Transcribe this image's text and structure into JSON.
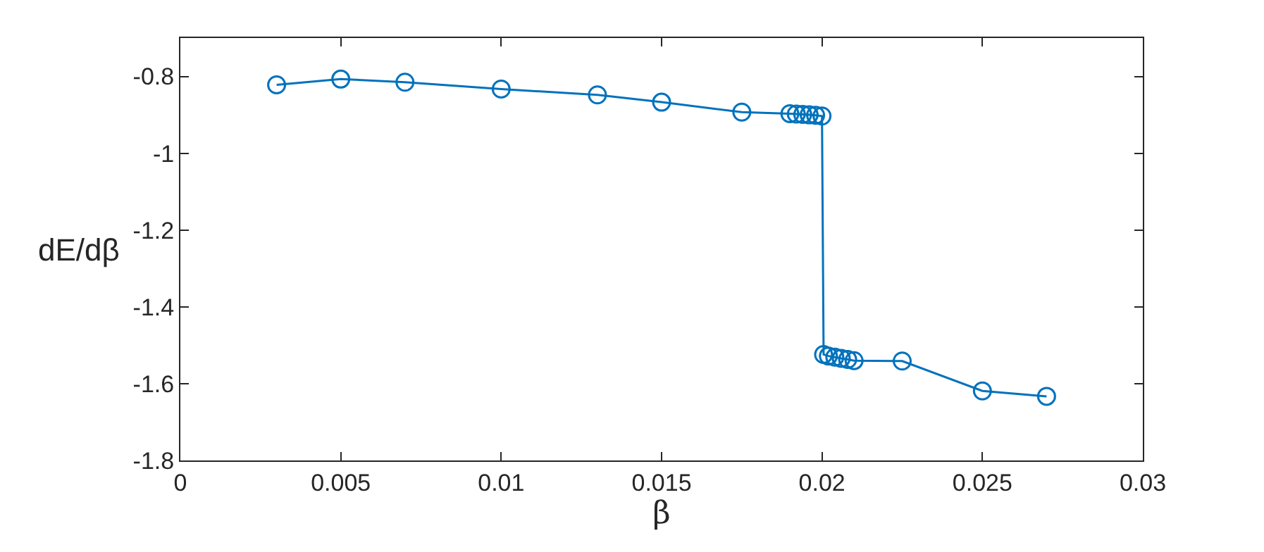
{
  "chart_data": {
    "type": "line",
    "xlabel": "β",
    "ylabel": "dE/dβ",
    "x": [
      0.003,
      0.005,
      0.007,
      0.01,
      0.013,
      0.015,
      0.0175,
      0.019,
      0.0192,
      0.0194,
      0.0196,
      0.0198,
      0.02,
      0.02005,
      0.0202,
      0.0204,
      0.0206,
      0.0208,
      0.021,
      0.0225,
      0.025,
      0.027
    ],
    "series": [
      {
        "color": "#0072bd",
        "values": [
          -0.822,
          -0.807,
          -0.815,
          -0.833,
          -0.848,
          -0.867,
          -0.893,
          -0.897,
          -0.898,
          -0.899,
          -0.9,
          -0.901,
          -0.903,
          -1.524,
          -1.528,
          -1.531,
          -1.534,
          -1.537,
          -1.54,
          -1.541,
          -1.619,
          -1.633
        ]
      }
    ],
    "xlim": [
      0,
      0.03
    ],
    "xticks": [
      0,
      0.005,
      0.01,
      0.015,
      0.02,
      0.025,
      0.03
    ],
    "ylim": [
      -1.8,
      -0.7
    ],
    "yticks": [
      -1.8,
      -1.6,
      -1.4,
      -1.2,
      -1,
      -0.8
    ],
    "marker": "circle",
    "line_style": "solid"
  }
}
